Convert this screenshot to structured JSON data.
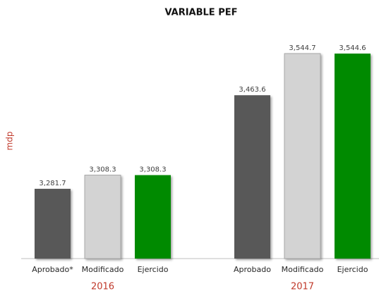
{
  "chart_data": {
    "type": "bar",
    "title": "VARIABLE PEF",
    "y_label": "mdp",
    "ylim": [
      3146,
      3570
    ],
    "colors": [
      "#595959",
      "#d3d3d3",
      "#008a00"
    ],
    "groups": [
      {
        "label": "2016",
        "categories": [
          "Aprobado*",
          "Modificado",
          "Ejercido"
        ],
        "values": [
          3281.7,
          3308.3,
          3308.3
        ],
        "value_labels": [
          "3,281.7",
          "3,308.3",
          "3,308.3"
        ]
      },
      {
        "label": "2017",
        "categories": [
          "Aprobado",
          "Modificado",
          "Ejercido"
        ],
        "values": [
          3463.6,
          3544.7,
          3544.6
        ],
        "value_labels": [
          "3,463.6",
          "3,544.7",
          "3,544.6"
        ]
      }
    ]
  }
}
